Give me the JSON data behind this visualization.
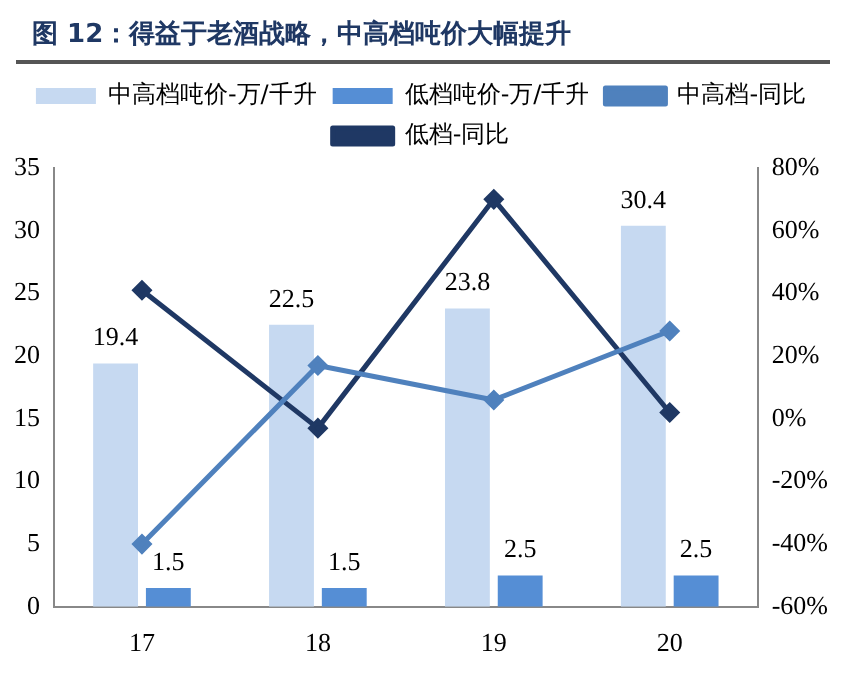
{
  "chart_data": {
    "type": "bar",
    "title": "图 12：得益于老酒战略，中高档吨价大幅提升",
    "categories": [
      "17",
      "18",
      "19",
      "20"
    ],
    "series": [
      {
        "name": "中高档吨价-万/千升",
        "color": "#c6d9f1",
        "values": [
          19.4,
          22.5,
          23.8,
          30.4
        ],
        "value_labels": [
          "19.4",
          "22.5",
          "23.8",
          "30.4"
        ]
      },
      {
        "name": "低档吨价-万/千升",
        "color": "#558ed5",
        "values": [
          1.5,
          1.5,
          2.5,
          2.5
        ],
        "value_labels": [
          "1.5",
          "1.5",
          "2.5",
          "2.5"
        ]
      },
      {
        "name": "中高档-同比",
        "type": "line",
        "axis": "y2",
        "color": "#4f81bd",
        "values": [
          -40,
          17,
          6,
          28
        ]
      },
      {
        "name": "低档-同比",
        "type": "line",
        "axis": "y2",
        "color": "#1f3864",
        "values": [
          41,
          -3,
          70,
          2
        ]
      }
    ],
    "ylim": [
      0,
      35
    ],
    "yticks": [
      0,
      5,
      10,
      15,
      20,
      25,
      30,
      35
    ],
    "y2lim": [
      -60,
      80
    ],
    "y2ticks": [
      {
        "value": -60,
        "label": "-60%"
      },
      {
        "value": -40,
        "label": "-40%"
      },
      {
        "value": -20,
        "label": "-20%"
      },
      {
        "value": 0,
        "label": "0%"
      },
      {
        "value": 20,
        "label": "20%"
      },
      {
        "value": 40,
        "label": "40%"
      },
      {
        "value": 60,
        "label": "60%"
      },
      {
        "value": 80,
        "label": "80%"
      }
    ],
    "grid": false,
    "legend": "top",
    "marker": "diamond",
    "line_style": "solid"
  }
}
